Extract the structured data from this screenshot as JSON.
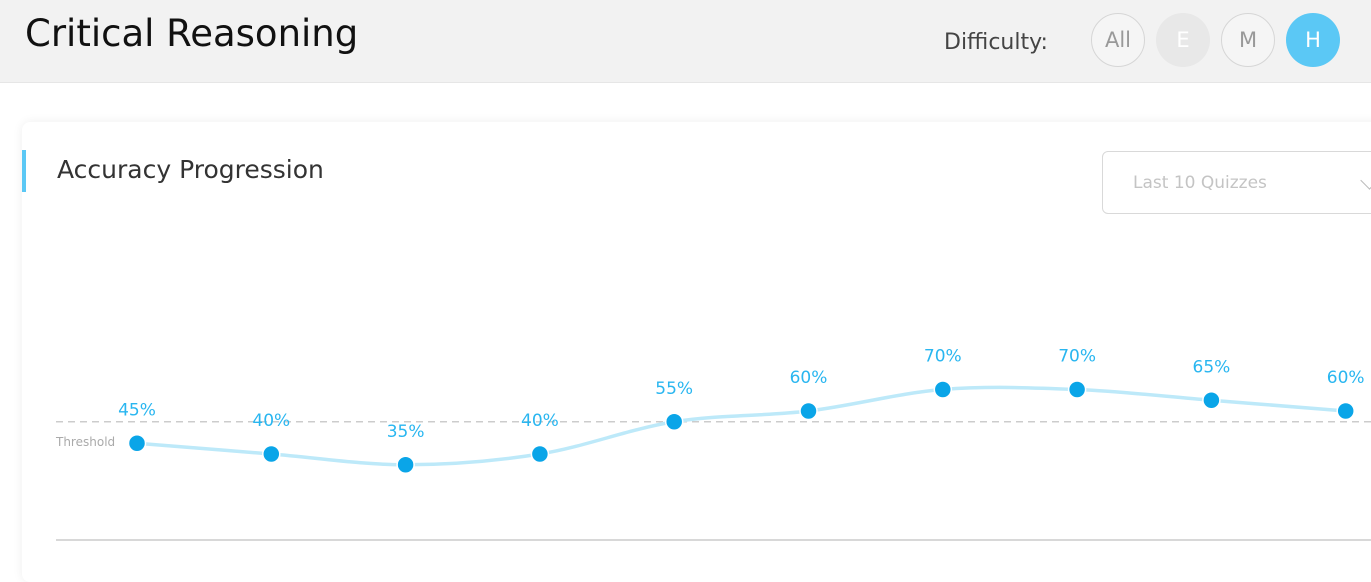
{
  "header": {
    "title": "Critical Reasoning",
    "difficulty_label": "Difficulty:",
    "difficulty_options": [
      "All",
      "E",
      "M",
      "H"
    ],
    "selected": 3
  },
  "card": {
    "title": "Accuracy Progression",
    "dropdown": "Last 10 Quizzes"
  },
  "chart_data": {
    "type": "line",
    "values": [
      45,
      40,
      35,
      40,
      55,
      60,
      70,
      70,
      65,
      60
    ],
    "value_labels": [
      "45%",
      "40%",
      "35%",
      "40%",
      "55%",
      "60%",
      "70%",
      "70%",
      "65%",
      "60%"
    ],
    "ylim": [
      0,
      100
    ],
    "threshold": 55,
    "threshold_label": "Threshold",
    "color": "#0aa5e8",
    "line_color": "#bde9f9",
    "label_color": "#29b6f0"
  }
}
